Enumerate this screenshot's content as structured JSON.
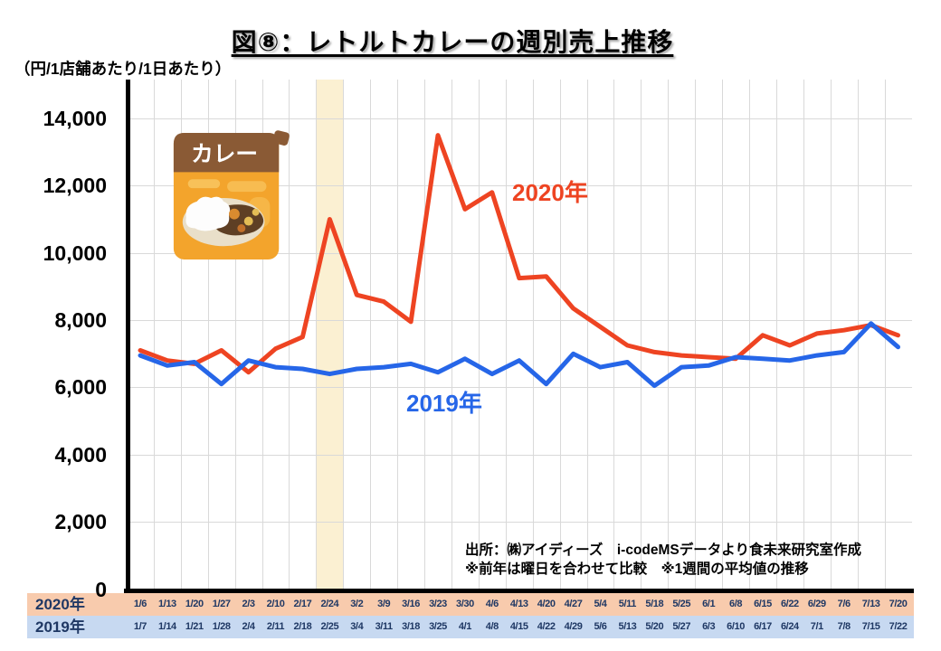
{
  "page": {
    "title": "図⑧：レトルトカレーの週別売上推移"
  },
  "source_note": {
    "line1": "出所：㈱アイディーズ　i-codeMSデータより食未来研究室作成",
    "line2": "※前年は曜日を合わせて比較　※1週間の平均値の推移"
  },
  "illustration": {
    "name": "retort-curry-pouch",
    "package_text": "カレー"
  },
  "colors": {
    "series_2020": "#EE4422",
    "series_2019": "#2666E8",
    "highlight_band": "#FBF0D2",
    "row_2020_bg": "#F8CBAD",
    "row_2019_bg": "#C7D9F1",
    "date_text": "#1F3864",
    "gridline": "#D9D9D9"
  },
  "chart_data": {
    "type": "line",
    "title": "図⑧：レトルトカレーの週別売上推移",
    "unit_label": "（円/1店舗あたり/1日あたり）",
    "ylabel": "円/1店舗あたり/1日あたり",
    "ylim": [
      0,
      14000
    ],
    "y_tick_labels": [
      "0",
      "2,000",
      "4,000",
      "6,000",
      "8,000",
      "10,000",
      "12,000",
      "14,000"
    ],
    "grid": true,
    "legend_position": "inline-annotations",
    "highlight_band": {
      "column_index": 7,
      "weeks": [
        "2/24",
        "2/25"
      ]
    },
    "series": [
      {
        "name": "2020年",
        "color": "#EE4422",
        "x_labels": [
          "1/6",
          "1/13",
          "1/20",
          "1/27",
          "2/3",
          "2/10",
          "2/17",
          "2/24",
          "3/2",
          "3/9",
          "3/16",
          "3/23",
          "3/30",
          "4/6",
          "4/13",
          "4/20",
          "4/27",
          "5/4",
          "5/11",
          "5/18",
          "5/25",
          "6/1",
          "6/8",
          "6/15",
          "6/22",
          "6/29",
          "7/6",
          "7/13",
          "7/20"
        ],
        "values": [
          7100,
          6800,
          6700,
          7100,
          6450,
          7150,
          7500,
          11000,
          8750,
          8550,
          7950,
          13500,
          11300,
          11800,
          9250,
          9300,
          8350,
          7800,
          7250,
          7050,
          6950,
          6900,
          6850,
          7550,
          7250,
          7600,
          7700,
          7850,
          7550
        ]
      },
      {
        "name": "2019年",
        "color": "#2666E8",
        "x_labels": [
          "1/7",
          "1/14",
          "1/21",
          "1/28",
          "2/4",
          "2/11",
          "2/18",
          "2/25",
          "3/4",
          "3/11",
          "3/18",
          "3/25",
          "4/1",
          "4/8",
          "4/15",
          "4/22",
          "4/29",
          "5/6",
          "5/13",
          "5/20",
          "5/27",
          "6/3",
          "6/10",
          "6/17",
          "6/24",
          "7/1",
          "7/8",
          "7/15",
          "7/22"
        ],
        "values": [
          6950,
          6650,
          6750,
          6100,
          6800,
          6600,
          6550,
          6400,
          6550,
          6600,
          6700,
          6450,
          6850,
          6400,
          6800,
          6100,
          7000,
          6600,
          6750,
          6050,
          6600,
          6650,
          6900,
          6850,
          6800,
          6950,
          7050,
          7900,
          7200
        ]
      }
    ]
  }
}
